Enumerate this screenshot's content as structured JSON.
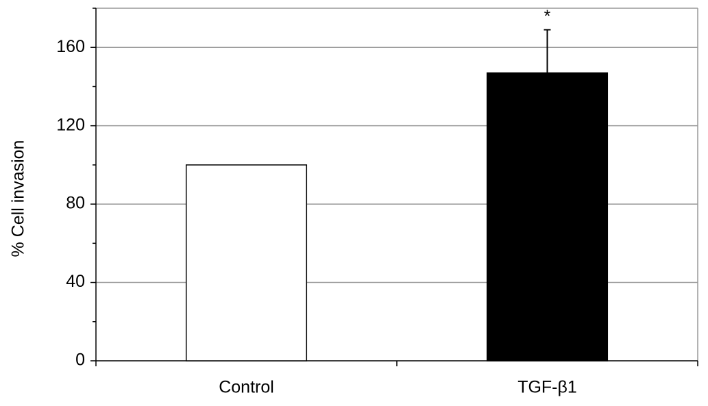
{
  "chart_data": {
    "type": "bar",
    "y_label": "% Cell invasion",
    "categories": [
      "Control",
      "TGF-β1"
    ],
    "values": [
      100,
      147
    ],
    "errors": [
      null,
      22
    ],
    "value_annotations": [
      null,
      "*"
    ],
    "colors": [
      "#ffffff",
      "#000000"
    ],
    "ylim": [
      0,
      180
    ],
    "yticks": [
      0,
      40,
      80,
      120,
      160
    ],
    "grid": true
  }
}
